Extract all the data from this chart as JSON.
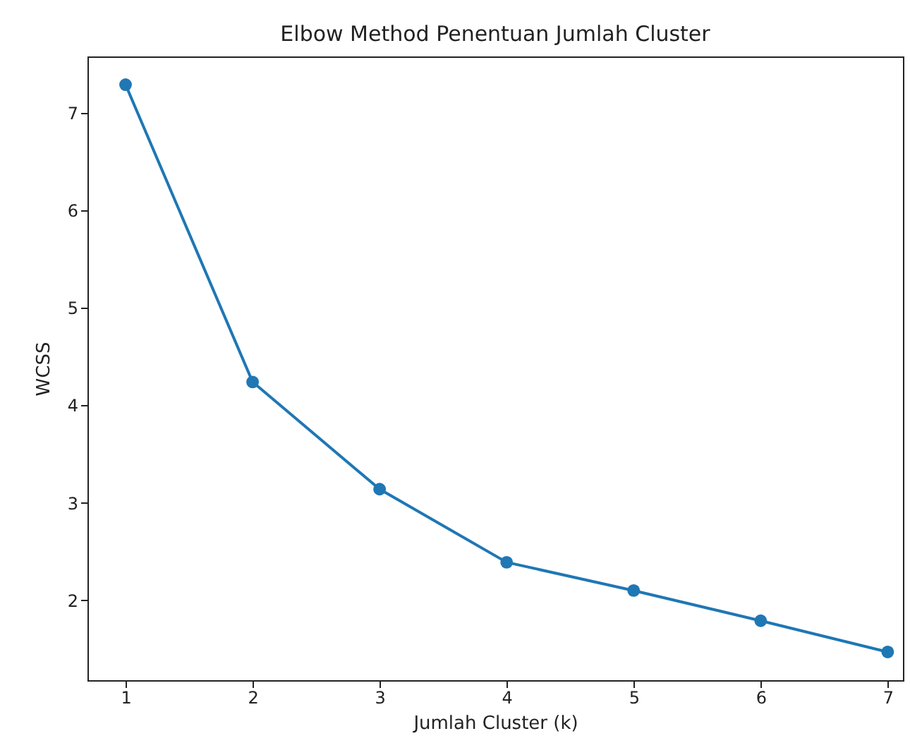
{
  "chart_data": {
    "type": "line",
    "title": "Elbow Method Penentuan Jumlah Cluster",
    "xlabel": "Jumlah Cluster (k)",
    "ylabel": "WCSS",
    "x": [
      1,
      2,
      3,
      4,
      5,
      6,
      7
    ],
    "series": [
      {
        "color": "#1f77b4",
        "values": [
          7.29,
          4.24,
          3.14,
          2.39,
          2.1,
          1.79,
          1.47
        ]
      }
    ],
    "xlim": [
      0.7,
      7.12
    ],
    "xticks": [
      1,
      2,
      3,
      4,
      5,
      6,
      7
    ],
    "ylim": [
      1.18,
      7.58
    ],
    "yticks": [
      2,
      3,
      4,
      5,
      6,
      7
    ],
    "marker": "circle",
    "line_style": "solid",
    "grid": false
  }
}
